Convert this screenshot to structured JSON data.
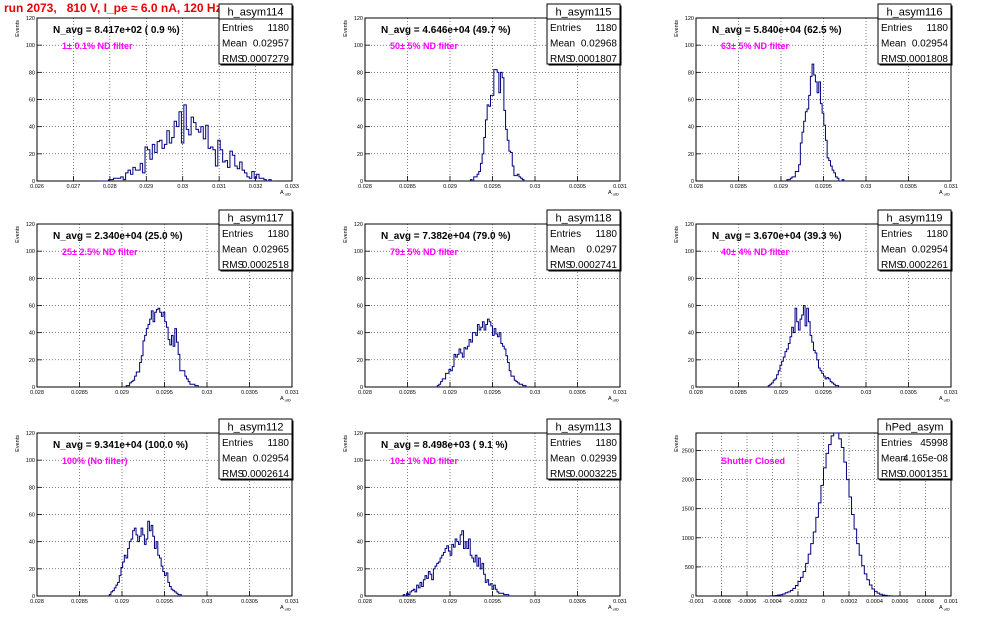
{
  "header": {
    "run_title": "run 2073,   810 V, I_pe ≈ 6.0 nA, 120 Hz"
  },
  "stat_labels": {
    "entries": "Entries",
    "mean": "Mean",
    "rms": "RMS"
  },
  "colors": {
    "title": "#ee0000",
    "histogram": "#000080",
    "filter_text": "#ff00ff",
    "grid": "#000000"
  },
  "chart_data": [
    {
      "type": "bar",
      "name": "h_asym114",
      "navg": "N_avg = 8.417e+02 ( 0.9 %)",
      "filter": "1± 0.1% ND filter",
      "entries": "1180",
      "mean": "0.02957",
      "rms": "0.0007279",
      "xlabel": "A_uID",
      "ylabel": "Events",
      "xlim": [
        0.026,
        0.033
      ],
      "ylim": [
        0,
        120
      ],
      "xticks": [
        0.026,
        0.027,
        0.028,
        0.029,
        0.03,
        0.031,
        0.032,
        0.033
      ],
      "xtick_labels": [
        "0.026",
        "0.027",
        "0.028",
        "0.029",
        "0.03",
        "0.031",
        "0.032",
        "0.033"
      ],
      "yticks": [
        0,
        20,
        40,
        60,
        80,
        100,
        120
      ],
      "ytick_labels": [
        "0",
        "20",
        "40",
        "60",
        "80",
        "100",
        "120"
      ],
      "x0": 0.0277,
      "bin_width": 6.66e-05,
      "values": [
        0,
        0,
        0,
        0,
        1,
        1,
        2,
        2,
        2,
        3,
        1,
        6,
        8,
        5,
        10,
        8,
        8,
        13,
        6,
        25,
        23,
        16,
        27,
        21,
        29,
        30,
        24,
        27,
        37,
        28,
        32,
        44,
        40,
        51,
        28,
        56,
        38,
        34,
        47,
        43,
        38,
        36,
        40,
        31,
        41,
        24,
        25,
        23,
        11,
        30,
        23,
        14,
        15,
        10,
        22,
        19,
        11,
        9,
        14,
        8,
        6,
        3,
        2,
        7,
        2,
        5,
        2,
        2,
        1,
        0,
        1,
        0
      ]
    },
    {
      "type": "bar",
      "name": "h_asym115",
      "navg": "N_avg = 4.646e+04 (49.7 %)",
      "filter": "50± 5% ND filter",
      "entries": "1180",
      "mean": "0.02968",
      "rms": "0.0001807",
      "xlabel": "A_uID",
      "ylabel": "Events",
      "xlim": [
        0.028,
        0.031
      ],
      "ylim": [
        0,
        120
      ],
      "xticks": [
        0.028,
        0.0285,
        0.029,
        0.0295,
        0.03,
        0.0305,
        0.031
      ],
      "xtick_labels": [
        "0.028",
        "0.0285",
        "0.029",
        "0.0295",
        "0.03",
        "0.0305",
        "0.031"
      ],
      "yticks": [
        0,
        20,
        40,
        60,
        80,
        100,
        120
      ],
      "ytick_labels": [
        "0",
        "20",
        "40",
        "60",
        "80",
        "100",
        "120"
      ],
      "x0": 0.02924,
      "bin_width": 1.97e-05,
      "values": [
        1,
        0,
        3,
        3,
        5,
        7,
        13,
        20,
        32,
        45,
        56,
        55,
        63,
        63,
        82,
        82,
        80,
        65,
        80,
        76,
        52,
        38,
        30,
        22,
        21,
        11,
        4,
        4,
        5,
        3,
        2,
        1,
        0
      ]
    },
    {
      "type": "bar",
      "name": "h_asym116",
      "navg": "N_avg = 5.840e+04 (62.5 %)",
      "filter": "63± 5% ND filter",
      "entries": "1180",
      "mean": "0.02954",
      "rms": "0.0001808",
      "xlabel": "A_uID",
      "ylabel": "Events",
      "xlim": [
        0.028,
        0.031
      ],
      "ylim": [
        0,
        120
      ],
      "xticks": [
        0.028,
        0.0285,
        0.029,
        0.0295,
        0.03,
        0.0305,
        0.031
      ],
      "xtick_labels": [
        "0.028",
        "0.0285",
        "0.029",
        "0.0295",
        "0.03",
        "0.0305",
        "0.031"
      ],
      "yticks": [
        0,
        20,
        40,
        60,
        80,
        100,
        120
      ],
      "ytick_labels": [
        "0",
        "20",
        "40",
        "60",
        "80",
        "100",
        "120"
      ],
      "x0": 0.02907,
      "bin_width": 1.97e-05,
      "values": [
        1,
        1,
        2,
        3,
        3,
        7,
        7,
        12,
        28,
        36,
        44,
        51,
        53,
        63,
        77,
        86,
        78,
        73,
        65,
        73,
        57,
        50,
        41,
        30,
        17,
        15,
        11,
        8,
        6,
        3,
        2,
        0,
        0,
        1,
        0
      ]
    },
    {
      "type": "bar",
      "name": "h_asym117",
      "navg": "N_avg = 2.340e+04 (25.0 %)",
      "filter": "25± 2.5% ND filter",
      "entries": "1180",
      "mean": "0.02965",
      "rms": "0.0002518",
      "xlabel": "A_uID",
      "ylabel": "Events",
      "xlim": [
        0.028,
        0.031
      ],
      "ylim": [
        0,
        120
      ],
      "xticks": [
        0.028,
        0.0285,
        0.029,
        0.0295,
        0.03,
        0.0305,
        0.031
      ],
      "xtick_labels": [
        "0.028",
        "0.0285",
        "0.029",
        "0.0295",
        "0.03",
        "0.0305",
        "0.031"
      ],
      "yticks": [
        0,
        20,
        40,
        60,
        80,
        100,
        120
      ],
      "ytick_labels": [
        "0",
        "20",
        "40",
        "60",
        "80",
        "100",
        "120"
      ],
      "x0": 0.02905,
      "bin_width": 1.97e-05,
      "values": [
        1,
        1,
        3,
        4,
        5,
        8,
        11,
        11,
        18,
        23,
        34,
        38,
        43,
        46,
        50,
        56,
        48,
        55,
        57,
        58,
        55,
        52,
        55,
        48,
        44,
        35,
        31,
        38,
        30,
        43,
        33,
        24,
        12,
        12,
        12,
        8,
        6,
        4,
        2,
        2,
        2,
        1,
        1,
        0
      ]
    },
    {
      "type": "bar",
      "name": "h_asym118",
      "navg": "N_avg = 7.382e+04 (79.0 %)",
      "filter": "79± 5% ND filter",
      "entries": "1180",
      "mean": "0.0297",
      "rms": "0.0002741",
      "xlabel": "A_uID",
      "ylabel": "Events",
      "xlim": [
        0.028,
        0.031
      ],
      "ylim": [
        0,
        120
      ],
      "xticks": [
        0.028,
        0.0285,
        0.029,
        0.0295,
        0.03,
        0.0305,
        0.031
      ],
      "xtick_labels": [
        "0.028",
        "0.0285",
        "0.029",
        "0.0295",
        "0.03",
        "0.0305",
        "0.031"
      ],
      "yticks": [
        0,
        20,
        40,
        60,
        80,
        100,
        120
      ],
      "ytick_labels": [
        "0",
        "20",
        "40",
        "60",
        "80",
        "100",
        "120"
      ],
      "x0": 0.02885,
      "bin_width": 1.97e-05,
      "values": [
        1,
        2,
        4,
        6,
        6,
        10,
        10,
        13,
        12,
        15,
        24,
        22,
        24,
        28,
        25,
        22,
        29,
        28,
        30,
        35,
        33,
        40,
        40,
        38,
        46,
        42,
        44,
        48,
        42,
        46,
        50,
        48,
        45,
        38,
        43,
        39,
        37,
        40,
        32,
        30,
        28,
        23,
        18,
        12,
        8,
        8,
        5,
        4,
        3,
        2,
        2,
        1,
        1,
        0
      ]
    },
    {
      "type": "bar",
      "name": "h_asym119",
      "navg": "N_avg = 3.670e+04 (39.3 %)",
      "filter": "40± 4% ND filter",
      "entries": "1180",
      "mean": "0.02954",
      "rms": "0.0002261",
      "xlabel": "A_uID",
      "ylabel": "Events",
      "xlim": [
        0.028,
        0.031
      ],
      "ylim": [
        0,
        120
      ],
      "xticks": [
        0.028,
        0.0285,
        0.029,
        0.0295,
        0.03,
        0.0305,
        0.031
      ],
      "xtick_labels": [
        "0.028",
        "0.0285",
        "0.029",
        "0.0295",
        "0.03",
        "0.0305",
        "0.031"
      ],
      "yticks": [
        0,
        20,
        40,
        60,
        80,
        100,
        120
      ],
      "ytick_labels": [
        "0",
        "20",
        "40",
        "60",
        "80",
        "100",
        "120"
      ],
      "x0": 0.02885,
      "bin_width": 1.97e-05,
      "values": [
        1,
        2,
        3,
        5,
        6,
        9,
        12,
        16,
        19,
        22,
        26,
        28,
        32,
        37,
        44,
        40,
        58,
        48,
        42,
        50,
        53,
        60,
        45,
        58,
        48,
        38,
        33,
        27,
        25,
        20,
        14,
        12,
        10,
        8,
        6,
        7,
        6,
        4,
        3,
        2,
        1,
        1,
        0
      ]
    },
    {
      "type": "bar",
      "name": "h_asym112",
      "navg": "N_avg = 9.341e+04 (100.0 %)",
      "filter": "100% (No filter)",
      "entries": "1180",
      "mean": "0.02954",
      "rms": "0.0002614",
      "xlabel": "A_uID",
      "ylabel": "Events",
      "xlim": [
        0.028,
        0.031
      ],
      "ylim": [
        0,
        120
      ],
      "xticks": [
        0.028,
        0.0285,
        0.029,
        0.0295,
        0.03,
        0.0305,
        0.031
      ],
      "xtick_labels": [
        "0.028",
        "0.0285",
        "0.029",
        "0.0295",
        "0.03",
        "0.0305",
        "0.031"
      ],
      "yticks": [
        0,
        20,
        40,
        60,
        80,
        100,
        120
      ],
      "ytick_labels": [
        "0",
        "20",
        "40",
        "60",
        "80",
        "100",
        "120"
      ],
      "x0": 0.02885,
      "bin_width": 1.97e-05,
      "values": [
        1,
        3,
        4,
        6,
        8,
        10,
        15,
        21,
        25,
        30,
        28,
        35,
        40,
        42,
        48,
        50,
        45,
        40,
        44,
        50,
        45,
        38,
        42,
        55,
        48,
        52,
        44,
        35,
        40,
        30,
        28,
        22,
        18,
        15,
        17,
        10,
        7,
        5,
        4,
        3,
        2,
        1,
        1,
        0
      ]
    },
    {
      "type": "bar",
      "name": "h_asym113",
      "navg": "N_avg = 8.498e+03 ( 9.1 %)",
      "filter": "10± 1% ND filter",
      "entries": "1180",
      "mean": "0.02939",
      "rms": "0.0003225",
      "xlabel": "A_uID",
      "ylabel": "Events",
      "xlim": [
        0.028,
        0.031
      ],
      "ylim": [
        0,
        120
      ],
      "xticks": [
        0.028,
        0.0285,
        0.029,
        0.0295,
        0.03,
        0.0305,
        0.031
      ],
      "xtick_labels": [
        "0.028",
        "0.0285",
        "0.029",
        "0.0295",
        "0.03",
        "0.0305",
        "0.031"
      ],
      "yticks": [
        0,
        20,
        40,
        60,
        80,
        100,
        120
      ],
      "ytick_labels": [
        "0",
        "20",
        "40",
        "60",
        "80",
        "100",
        "120"
      ],
      "x0": 0.02845,
      "bin_width": 1.97e-05,
      "values": [
        1,
        0,
        2,
        1,
        3,
        4,
        5,
        3,
        8,
        6,
        10,
        7,
        12,
        15,
        13,
        18,
        16,
        12,
        20,
        22,
        24,
        25,
        28,
        30,
        32,
        35,
        37,
        33,
        30,
        38,
        36,
        42,
        40,
        38,
        45,
        48,
        35,
        40,
        35,
        42,
        30,
        28,
        25,
        30,
        22,
        28,
        20,
        24,
        16,
        10,
        12,
        8,
        9,
        5,
        8,
        5,
        3,
        2,
        2,
        2,
        1,
        1,
        1,
        0
      ]
    },
    {
      "type": "bar",
      "name": "hPed_asym",
      "navg": "",
      "filter": "Shutter Closed",
      "entries": "45998",
      "mean": "4.165e-08",
      "rms": "0.0001351",
      "xlabel": "A_uID",
      "ylabel": "Events",
      "xlim": [
        -0.001,
        0.001
      ],
      "ylim": [
        0,
        2800
      ],
      "xticks": [
        -0.001,
        -0.0008,
        -0.0006,
        -0.0004,
        -0.0002,
        0,
        0.0002,
        0.0004,
        0.0006,
        0.0008,
        0.001
      ],
      "xtick_labels": [
        "-0.001",
        "-0.0008",
        "-0.0006",
        "-0.0004",
        "-0.0002",
        "0",
        "0.0002",
        "0.0004",
        "0.0006",
        "0.0008",
        "0.001"
      ],
      "yticks": [
        0,
        500,
        1000,
        1500,
        2000,
        2500
      ],
      "ytick_labels": [
        "0",
        "500",
        "1000",
        "1500",
        "2000",
        "2500"
      ],
      "x0": -0.00042,
      "bin_width": 2e-05,
      "values": [
        2,
        4,
        8,
        15,
        22,
        35,
        55,
        70,
        95,
        130,
        180,
        250,
        320,
        420,
        560,
        720,
        900,
        1100,
        1350,
        1600,
        1900,
        2200,
        2450,
        2600,
        2750,
        2820,
        2850,
        2700,
        2550,
        2300,
        2000,
        1700,
        1400,
        1150,
        900,
        700,
        520,
        380,
        280,
        190,
        120,
        80,
        50,
        30,
        18,
        10,
        5,
        2
      ]
    }
  ]
}
